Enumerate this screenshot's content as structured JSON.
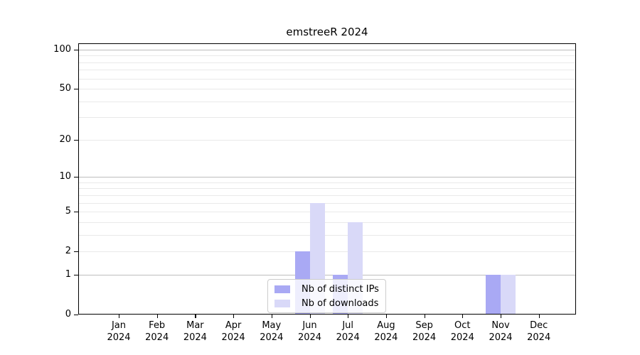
{
  "chart_data": {
    "type": "bar",
    "title": "emstreeR 2024",
    "categories": [
      "Jan 2024",
      "Feb 2024",
      "Mar 2024",
      "Apr 2024",
      "May 2024",
      "Jun 2024",
      "Jul 2024",
      "Aug 2024",
      "Sep 2024",
      "Oct 2024",
      "Nov 2024",
      "Dec 2024"
    ],
    "x_months": [
      "Jan",
      "Feb",
      "Mar",
      "Apr",
      "May",
      "Jun",
      "Jul",
      "Aug",
      "Sep",
      "Oct",
      "Nov",
      "Dec"
    ],
    "x_year": "2024",
    "series": [
      {
        "name": "Nb of distinct IPs",
        "color": "#a9a9f4",
        "values": [
          0,
          0,
          0,
          0,
          0,
          2,
          1,
          0,
          0,
          0,
          1,
          0
        ]
      },
      {
        "name": "Nb of downloads",
        "color": "#d9d9f8",
        "values": [
          0,
          0,
          0,
          0,
          0,
          6,
          4,
          0,
          0,
          0,
          1,
          0
        ]
      }
    ],
    "y_scale": "log1p",
    "y_ticks": [
      0,
      1,
      2,
      5,
      10,
      20,
      50,
      100
    ],
    "y_gridlines_major": [
      1,
      10,
      100
    ],
    "y_gridlines_minor": [
      2,
      3,
      4,
      5,
      6,
      7,
      8,
      9,
      20,
      30,
      40,
      50,
      60,
      70,
      80,
      90
    ],
    "ylim": [
      0,
      112
    ],
    "grid_on": true,
    "legend_position": "bottom-center",
    "colors": {
      "grid_major": "#bdbdbd",
      "grid_minor": "#e9e9e9",
      "axis": "#000000",
      "background": "#ffffff",
      "legend_border": "#cccccc"
    }
  }
}
